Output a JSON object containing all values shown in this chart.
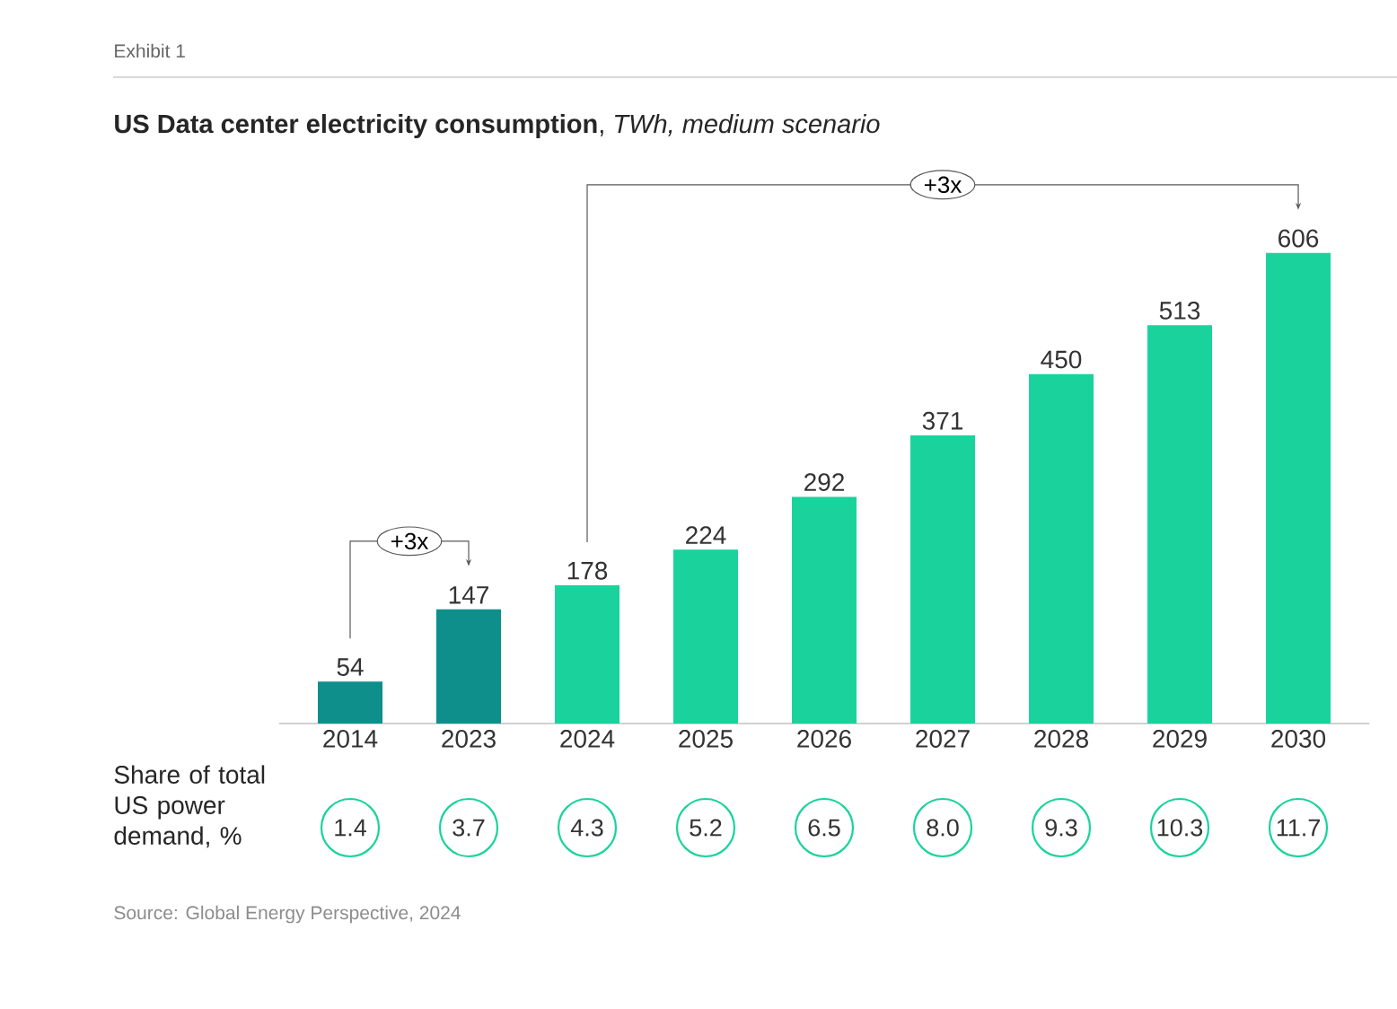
{
  "chart_data": {
    "type": "bar",
    "title": "**US Data center electricity consumption**, *TWh, medium scenario*",
    "categories": [
      "2014",
      "2023",
      "2024",
      "2025",
      "2026",
      "2027",
      "2028",
      "2029",
      "2030"
    ],
    "values": [
      54,
      147,
      178,
      224,
      292,
      371,
      450,
      513,
      606
    ],
    "colors": [
      "#0e8f8c",
      "#0e8f8c",
      "#1ad39c",
      "#1ad39c",
      "#1ad39c",
      "#1ad39c",
      "#1ad39c",
      "#1ad39c",
      "#1ad39c"
    ],
    "data_labels": true,
    "annotations": [
      "Exhibit 1",
      "+3x",
      "+3x",
      "Share of total US power demand, %",
      "1.4",
      "3.7",
      "4.3",
      "5.2",
      "6.5",
      "8.0",
      "9.3",
      "10.3",
      "11.7",
      "Source: Global Energy Perspective, 2024"
    ]
  }
}
